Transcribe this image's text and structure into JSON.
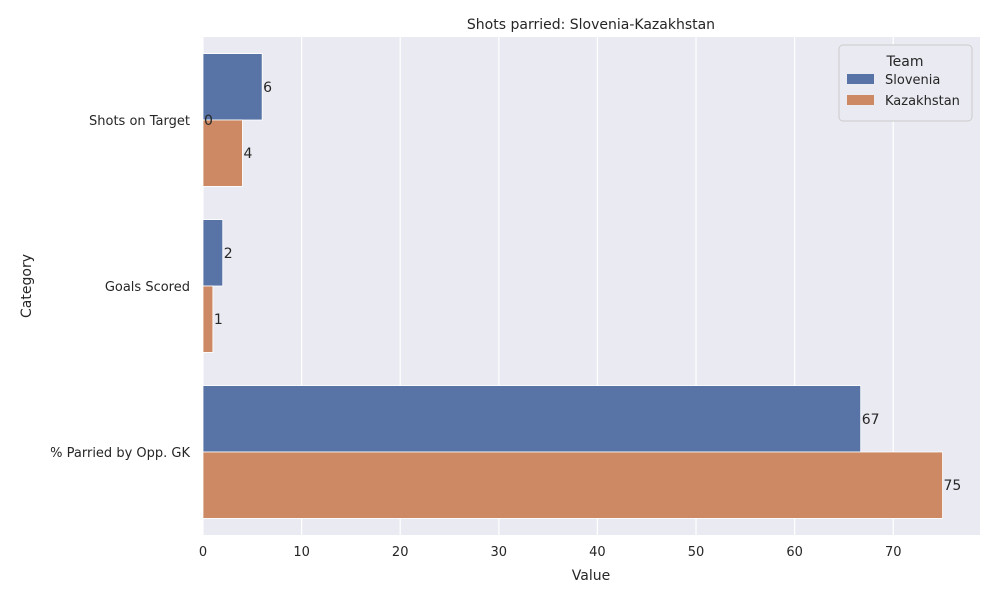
{
  "chart_data": {
    "type": "bar",
    "orientation": "horizontal",
    "title": "Shots parried: Slovenia-Kazakhstan",
    "xlabel": "Value",
    "ylabel": "Category",
    "categories": [
      "Shots on Target",
      "Goals Scored",
      "% Parried by Opp. GK"
    ],
    "xlim": [
      0,
      78.8
    ],
    "xticks": [
      0,
      10,
      20,
      30,
      40,
      50,
      60,
      70
    ],
    "grid": true,
    "legend": {
      "title": "Team",
      "placement": "top-right"
    },
    "series": [
      {
        "name": "Slovenia",
        "color": "#5874a6",
        "values": [
          6,
          2,
          66.7
        ],
        "labels": [
          "6",
          "2",
          "67"
        ]
      },
      {
        "name": "Kazakhstan",
        "color": "#cc8963",
        "values": [
          4,
          1,
          75
        ],
        "labels": [
          "4",
          "1",
          "75"
        ]
      }
    ],
    "annotations": [
      {
        "text": "0",
        "x": 0,
        "category": "Shots on Target"
      }
    ]
  }
}
